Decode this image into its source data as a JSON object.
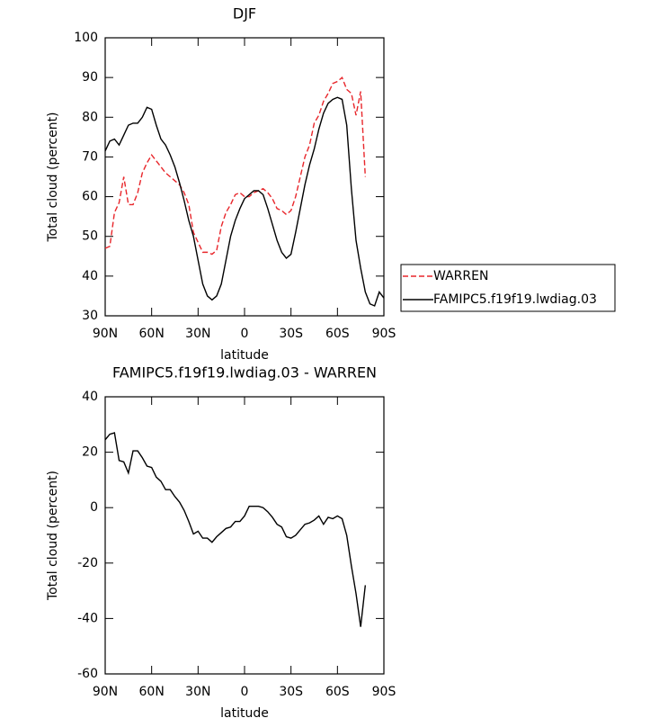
{
  "chart_data": [
    {
      "type": "line",
      "title": "DJF",
      "xlabel": "latitude",
      "ylabel": "Total cloud (percent)",
      "x": [
        90,
        87,
        84,
        81,
        78,
        75,
        72,
        69,
        66,
        63,
        60,
        57,
        54,
        51,
        48,
        45,
        42,
        39,
        36,
        33,
        30,
        27,
        24,
        21,
        18,
        15,
        12,
        9,
        6,
        3,
        0,
        -3,
        -6,
        -9,
        -12,
        -15,
        -18,
        -21,
        -24,
        -27,
        -30,
        -33,
        -36,
        -39,
        -42,
        -45,
        -48,
        -51,
        -54,
        -57,
        -60,
        -63,
        -66,
        -69,
        -72,
        -75,
        -78,
        -81,
        -84,
        -87,
        -90
      ],
      "xlim": [
        90,
        -90
      ],
      "xticks": [
        {
          "value": 90,
          "label": "90N"
        },
        {
          "value": 60,
          "label": "60N"
        },
        {
          "value": 30,
          "label": "30N"
        },
        0,
        {
          "value": -30,
          "label": "30S"
        },
        {
          "value": -60,
          "label": "60S"
        },
        {
          "value": -90,
          "label": "90S"
        }
      ],
      "ylim": [
        30,
        100
      ],
      "yticks": [
        30,
        40,
        50,
        60,
        70,
        80,
        90,
        100
      ],
      "legend": "right",
      "series": [
        {
          "name": "WARREN",
          "color": "#e8262b",
          "dash": true,
          "values": [
            47,
            47.5,
            56,
            58.5,
            65,
            58,
            58,
            61,
            66,
            68.5,
            70.5,
            69,
            67.5,
            66,
            65,
            64,
            63,
            61,
            58,
            51,
            48.5,
            46,
            46,
            45.5,
            46.5,
            52.5,
            56,
            58,
            60.5,
            61,
            60,
            60,
            61,
            61.5,
            62,
            61,
            59.5,
            57,
            56.5,
            55.5,
            56.5,
            60,
            65,
            70,
            73,
            78.5,
            80.5,
            84,
            86,
            88.5,
            89,
            90,
            87,
            86,
            80.5,
            86.5,
            65,
            null,
            null,
            null,
            null
          ]
        },
        {
          "name": "FAMIPC5.f19f19.lwdiag.03",
          "color": "#000000",
          "dash": false,
          "values": [
            71.5,
            74,
            74.5,
            73,
            75.5,
            78,
            78.5,
            78.5,
            80,
            82.5,
            82,
            78,
            74.5,
            73,
            70.5,
            67.5,
            63.5,
            59,
            54,
            50,
            44,
            38,
            35,
            34,
            35,
            38,
            44,
            50,
            54,
            57,
            59.5,
            60.5,
            61.5,
            61.5,
            60.5,
            57,
            53,
            49,
            46,
            44.5,
            45.5,
            51,
            57,
            63,
            68,
            72,
            77,
            81,
            83.5,
            84.5,
            85,
            84.5,
            78,
            62,
            49,
            42,
            36,
            33,
            32.5,
            36,
            34.5
          ]
        }
      ]
    },
    {
      "type": "line",
      "title": "FAMIPC5.f19f19.lwdiag.03 - WARREN",
      "xlabel": "latitude",
      "ylabel": "Total cloud (percent)",
      "x": [
        90,
        87,
        84,
        81,
        78,
        75,
        72,
        69,
        66,
        63,
        60,
        57,
        54,
        51,
        48,
        45,
        42,
        39,
        36,
        33,
        30,
        27,
        24,
        21,
        18,
        15,
        12,
        9,
        6,
        3,
        0,
        -3,
        -6,
        -9,
        -12,
        -15,
        -18,
        -21,
        -24,
        -27,
        -30,
        -33,
        -36,
        -39,
        -42,
        -45,
        -48,
        -51,
        -54,
        -57,
        -60,
        -63,
        -66,
        -69,
        -72,
        -75,
        -78
      ],
      "xlim": [
        90,
        -90
      ],
      "xticks": [
        {
          "value": 90,
          "label": "90N"
        },
        {
          "value": 60,
          "label": "60N"
        },
        {
          "value": 30,
          "label": "30N"
        },
        0,
        {
          "value": -30,
          "label": "30S"
        },
        {
          "value": -60,
          "label": "60S"
        },
        {
          "value": -90,
          "label": "90S"
        }
      ],
      "ylim": [
        -60,
        40
      ],
      "yticks": [
        -60,
        -40,
        -20,
        0,
        20,
        40
      ],
      "color": "#000000",
      "values": [
        24.5,
        26.5,
        27,
        17,
        16.5,
        12.5,
        20.5,
        20.5,
        18,
        15,
        14.5,
        11,
        9.5,
        6.5,
        6.5,
        4,
        2,
        -1,
        -5,
        -9.5,
        -8.5,
        -11,
        -11,
        -12.5,
        -10.5,
        -9,
        -7.5,
        -7,
        -5,
        -5,
        -3,
        0.5,
        0.5,
        0.5,
        0,
        -1.5,
        -3.5,
        -6,
        -7,
        -10.5,
        -11,
        -10,
        -8,
        -6,
        -5.5,
        -4.5,
        -3,
        -6,
        -3.5,
        -4,
        -3,
        -4,
        -10,
        -21,
        -31,
        -43,
        -28
      ]
    }
  ]
}
